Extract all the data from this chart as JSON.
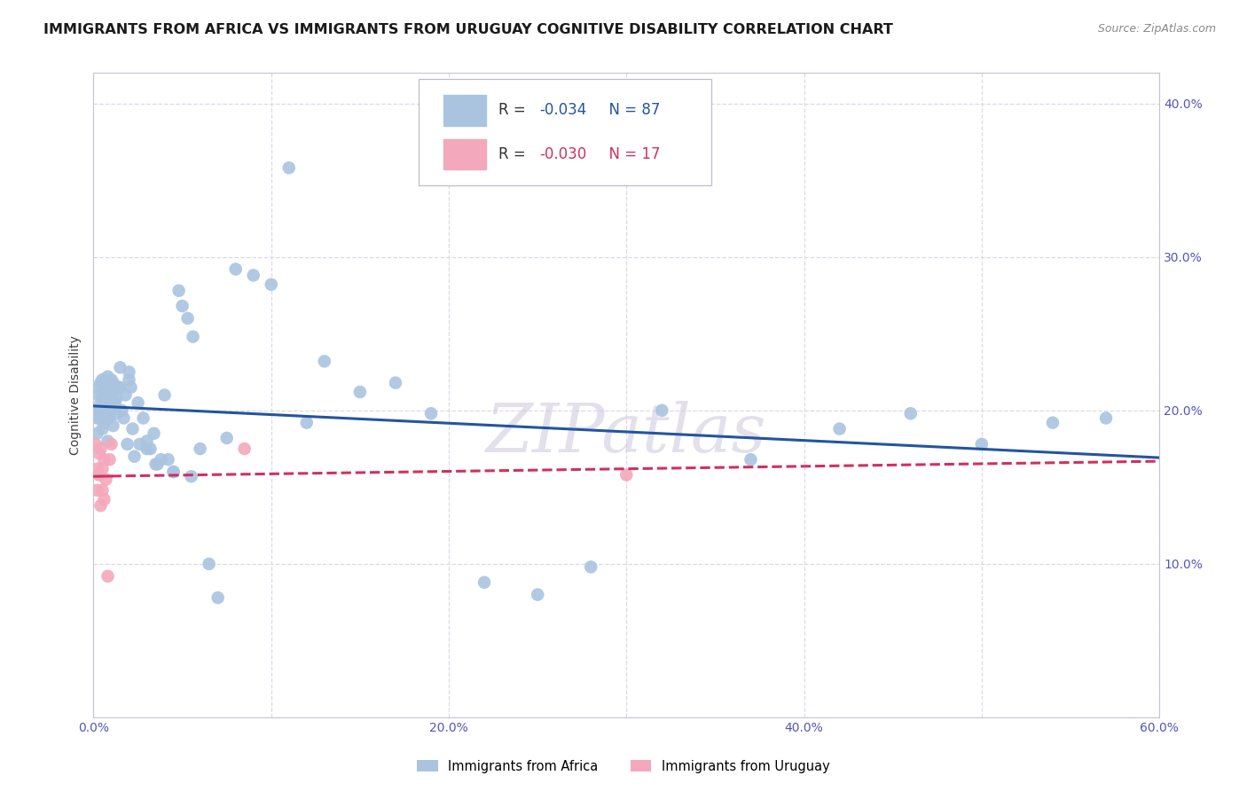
{
  "title": "IMMIGRANTS FROM AFRICA VS IMMIGRANTS FROM URUGUAY COGNITIVE DISABILITY CORRELATION CHART",
  "source": "Source: ZipAtlas.com",
  "ylabel": "Cognitive Disability",
  "xlim": [
    0.0,
    0.6
  ],
  "ylim": [
    0.0,
    0.42
  ],
  "xticks": [
    0.0,
    0.1,
    0.2,
    0.3,
    0.4,
    0.5,
    0.6
  ],
  "yticks": [
    0.0,
    0.1,
    0.2,
    0.3,
    0.4
  ],
  "xticklabels": [
    "0.0%",
    "",
    "20.0%",
    "",
    "40.0%",
    "",
    "60.0%"
  ],
  "yticklabels_right": [
    "",
    "10.0%",
    "20.0%",
    "30.0%",
    "40.0%"
  ],
  "africa_R": -0.034,
  "africa_N": 87,
  "uruguay_R": -0.03,
  "uruguay_N": 17,
  "africa_color": "#aac4e0",
  "africa_line_color": "#2255a0",
  "uruguay_color": "#f4a8bc",
  "uruguay_line_color": "#d03060",
  "legend_label_africa": "Immigrants from Africa",
  "legend_label_uruguay": "Immigrants from Uruguay",
  "africa_x": [
    0.001,
    0.002,
    0.002,
    0.003,
    0.003,
    0.003,
    0.004,
    0.004,
    0.004,
    0.005,
    0.005,
    0.005,
    0.005,
    0.006,
    0.006,
    0.006,
    0.007,
    0.007,
    0.007,
    0.008,
    0.008,
    0.008,
    0.009,
    0.009,
    0.01,
    0.01,
    0.01,
    0.011,
    0.011,
    0.012,
    0.012,
    0.013,
    0.013,
    0.014,
    0.015,
    0.016,
    0.017,
    0.018,
    0.019,
    0.02,
    0.021,
    0.022,
    0.023,
    0.025,
    0.026,
    0.028,
    0.03,
    0.032,
    0.034,
    0.036,
    0.038,
    0.04,
    0.042,
    0.045,
    0.048,
    0.05,
    0.053,
    0.056,
    0.06,
    0.065,
    0.07,
    0.075,
    0.08,
    0.09,
    0.1,
    0.11,
    0.12,
    0.13,
    0.15,
    0.17,
    0.19,
    0.22,
    0.25,
    0.28,
    0.32,
    0.37,
    0.42,
    0.46,
    0.5,
    0.54,
    0.57,
    0.015,
    0.02,
    0.03,
    0.035,
    0.045,
    0.055
  ],
  "africa_y": [
    0.2,
    0.195,
    0.185,
    0.21,
    0.2,
    0.215,
    0.195,
    0.205,
    0.218,
    0.208,
    0.198,
    0.22,
    0.188,
    0.212,
    0.2,
    0.192,
    0.215,
    0.205,
    0.195,
    0.222,
    0.18,
    0.21,
    0.205,
    0.195,
    0.22,
    0.21,
    0.2,
    0.218,
    0.19,
    0.215,
    0.205,
    0.198,
    0.208,
    0.215,
    0.228,
    0.2,
    0.195,
    0.21,
    0.178,
    0.22,
    0.215,
    0.188,
    0.17,
    0.205,
    0.178,
    0.195,
    0.18,
    0.175,
    0.185,
    0.165,
    0.168,
    0.21,
    0.168,
    0.16,
    0.278,
    0.268,
    0.26,
    0.248,
    0.175,
    0.1,
    0.078,
    0.182,
    0.292,
    0.288,
    0.282,
    0.358,
    0.192,
    0.232,
    0.212,
    0.218,
    0.198,
    0.088,
    0.08,
    0.098,
    0.2,
    0.168,
    0.188,
    0.198,
    0.178,
    0.192,
    0.195,
    0.215,
    0.225,
    0.175,
    0.165,
    0.16,
    0.157
  ],
  "uruguay_x": [
    0.001,
    0.002,
    0.002,
    0.003,
    0.003,
    0.004,
    0.004,
    0.005,
    0.005,
    0.006,
    0.006,
    0.007,
    0.008,
    0.009,
    0.01,
    0.085,
    0.3
  ],
  "uruguay_y": [
    0.178,
    0.162,
    0.148,
    0.158,
    0.172,
    0.175,
    0.138,
    0.148,
    0.162,
    0.168,
    0.142,
    0.155,
    0.092,
    0.168,
    0.178,
    0.175,
    0.158
  ],
  "watermark": "ZIPatlas",
  "background_color": "#ffffff",
  "grid_color": "#ddd8e8",
  "title_fontsize": 11.5,
  "axis_label_fontsize": 10,
  "tick_fontsize": 10
}
